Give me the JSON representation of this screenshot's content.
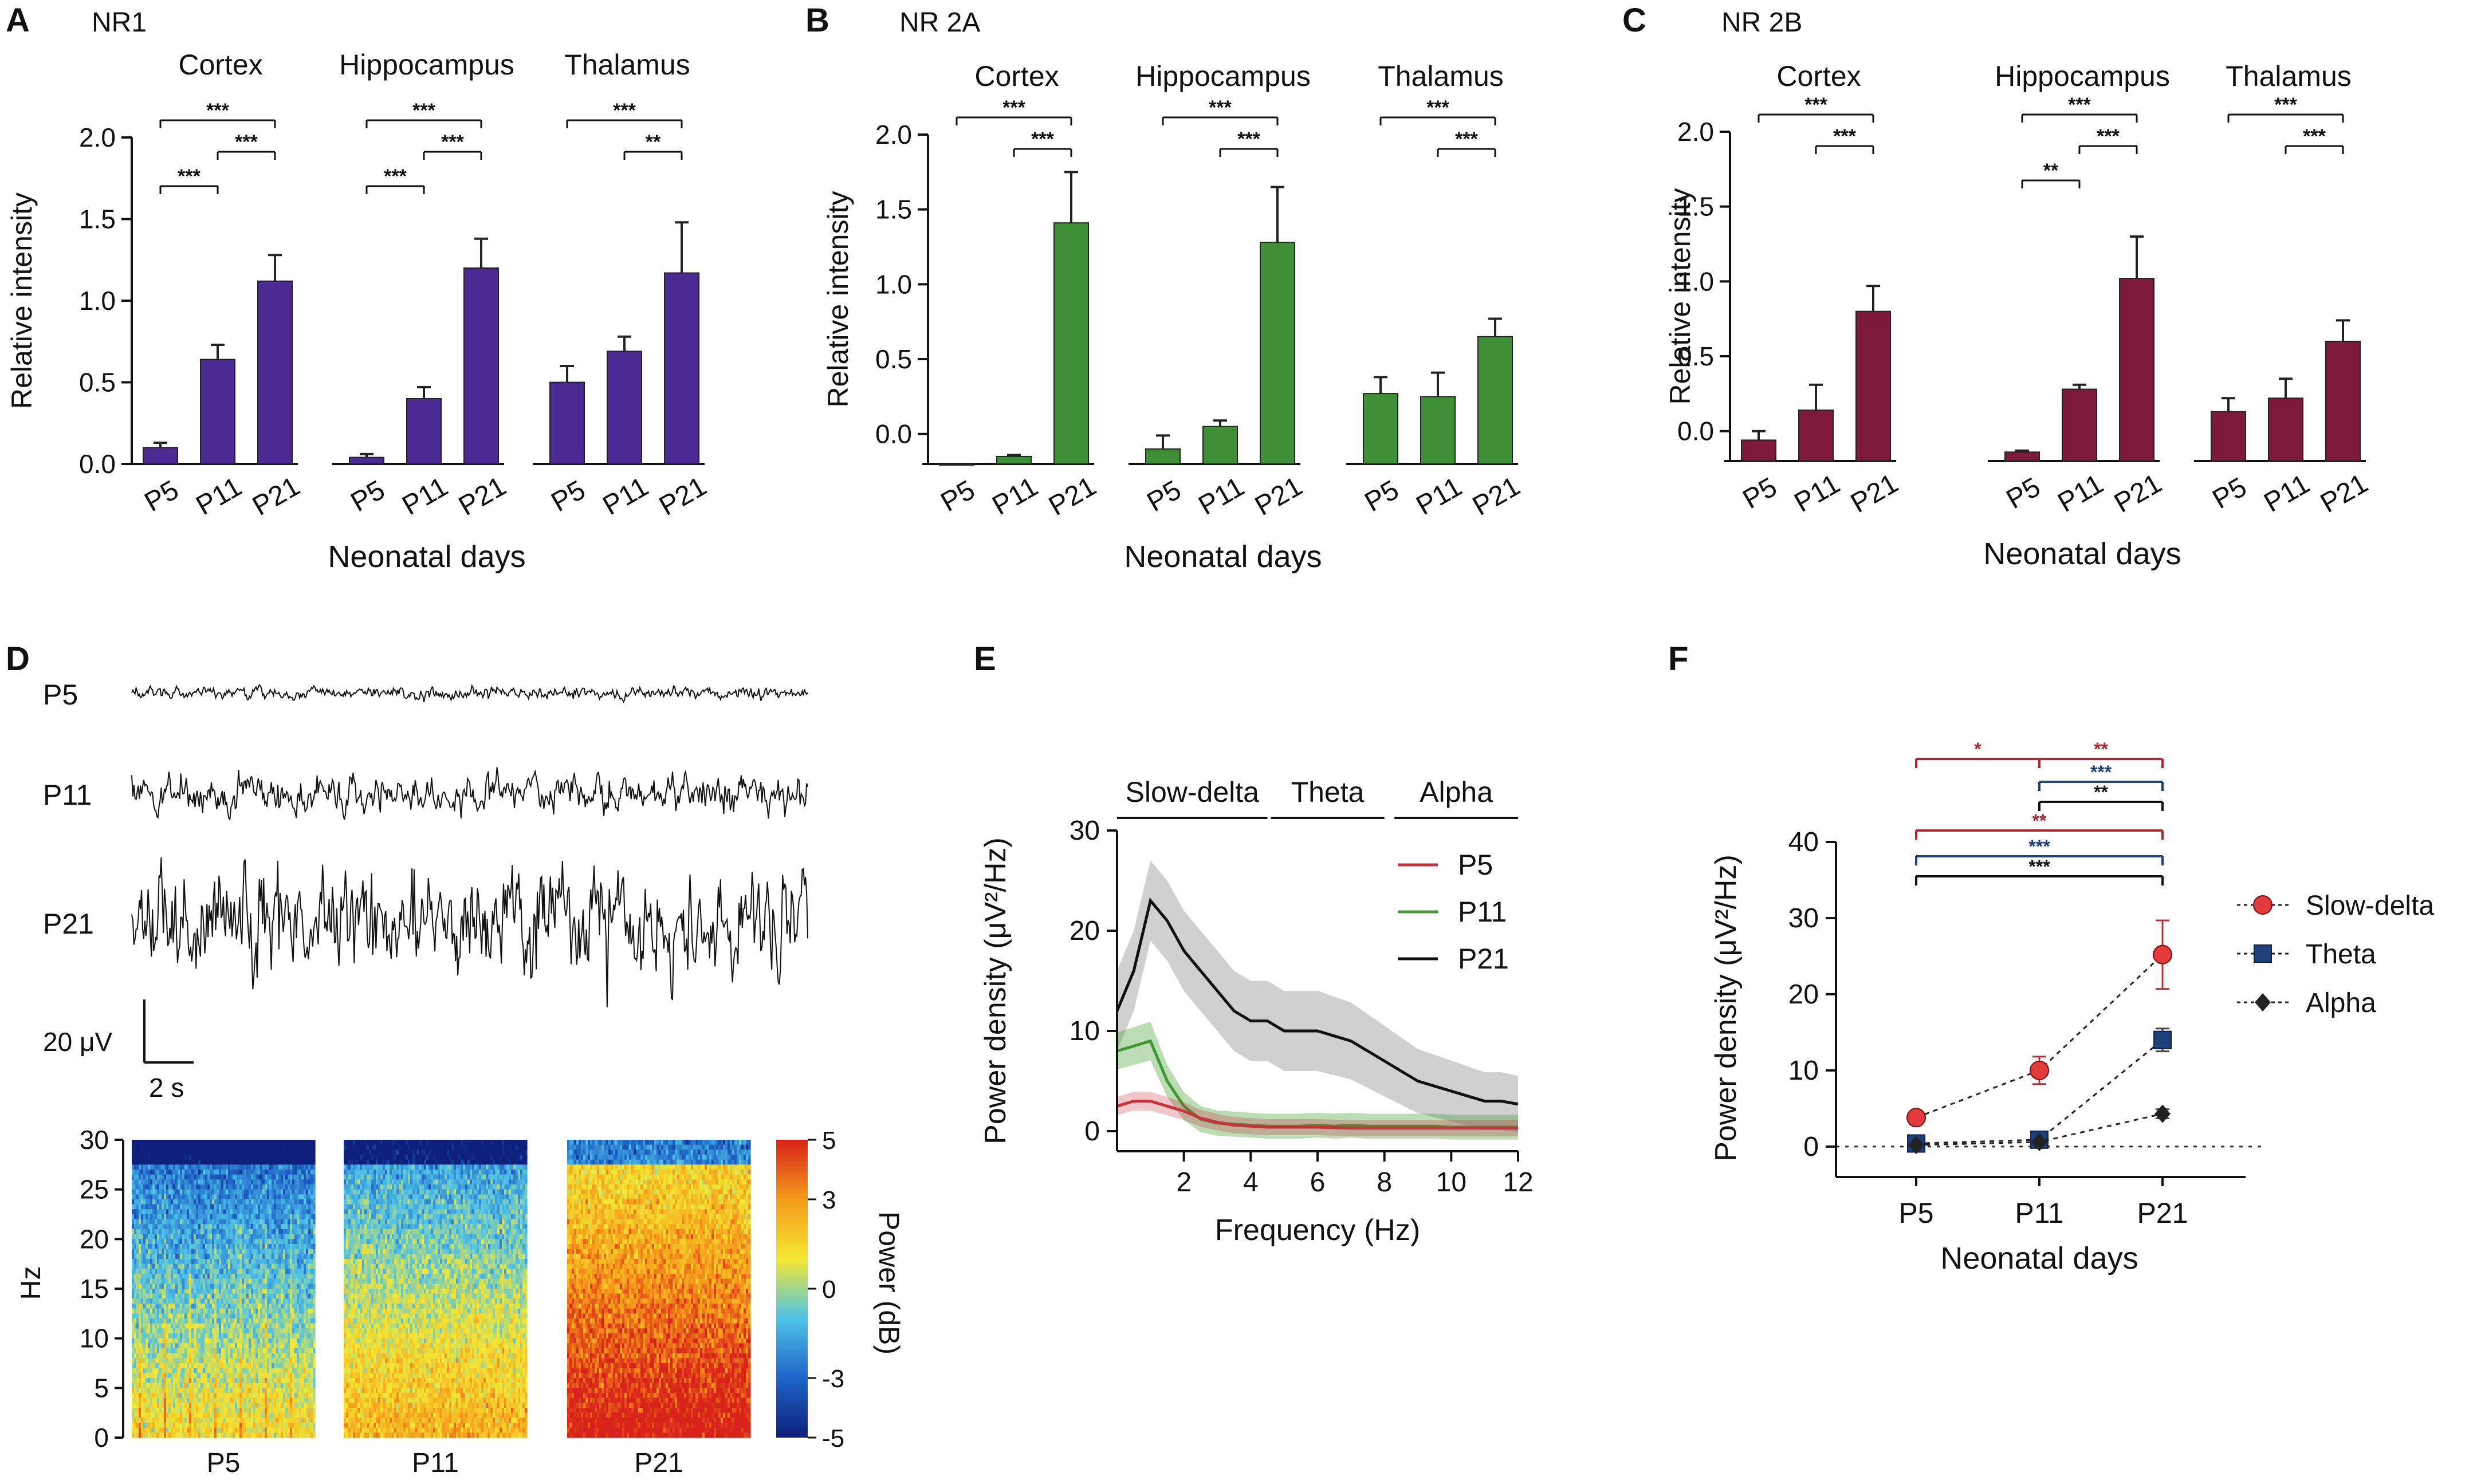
{
  "figure": {
    "panel_labels": [
      "A",
      "B",
      "C",
      "D",
      "E",
      "F"
    ]
  },
  "colors": {
    "nr1": "#4b2a93",
    "nr2a": "#3e8e35",
    "nr2b": "#7d1a3b",
    "p5": "#c8323c",
    "p11": "#3e9a2e",
    "p21": "#111111",
    "slow_delta": "#e03a3a",
    "theta": "#1f3f7a",
    "alpha": "#222222",
    "sig_red": "#b3262e",
    "sig_blue": "#1f3f7a",
    "sig_black": "#111111"
  },
  "chart_data": [
    {
      "id": "A",
      "type": "bar",
      "title": "NR1",
      "xlabel": "Neonatal days",
      "ylabel": "Relative intensity",
      "ylim": [
        0,
        2.0
      ],
      "yticks": [
        "0.0",
        "0.5",
        "1.0",
        "1.5",
        "2.0"
      ],
      "regions": [
        {
          "name": "Cortex",
          "categories": [
            "P5",
            "P11",
            "P21"
          ],
          "values": [
            0.1,
            0.64,
            1.12
          ],
          "errors": [
            0.03,
            0.09,
            0.16
          ],
          "sig": [
            {
              "from": 0,
              "to": 2,
              "label": "***"
            },
            {
              "from": 1,
              "to": 2,
              "label": "***"
            },
            {
              "from": 0,
              "to": 1,
              "label": "***"
            }
          ]
        },
        {
          "name": "Hippocampus",
          "categories": [
            "P5",
            "P11",
            "P21"
          ],
          "values": [
            0.04,
            0.4,
            1.2
          ],
          "errors": [
            0.02,
            0.07,
            0.18
          ],
          "sig": [
            {
              "from": 0,
              "to": 2,
              "label": "***"
            },
            {
              "from": 1,
              "to": 2,
              "label": "***"
            },
            {
              "from": 0,
              "to": 1,
              "label": "***"
            }
          ]
        },
        {
          "name": "Thalamus",
          "categories": [
            "P5",
            "P11",
            "P21"
          ],
          "values": [
            0.5,
            0.69,
            1.17
          ],
          "errors": [
            0.1,
            0.09,
            0.31
          ],
          "sig": [
            {
              "from": 0,
              "to": 2,
              "label": "***"
            },
            {
              "from": 1,
              "to": 2,
              "label": "**"
            }
          ]
        }
      ]
    },
    {
      "id": "B",
      "type": "bar",
      "title": "NR 2A",
      "xlabel": "Neonatal days",
      "ylabel": "Relative intensity",
      "ylim": [
        -0.2,
        2.0
      ],
      "yticks": [
        "0.0",
        "0.5",
        "1.0",
        "1.5",
        "2.0"
      ],
      "regions": [
        {
          "name": "Cortex",
          "categories": [
            "P5",
            "P11",
            "P21"
          ],
          "values": [
            -0.2,
            -0.15,
            1.41
          ],
          "errors": [
            0,
            0.01,
            0.34
          ],
          "sig": [
            {
              "from": 0,
              "to": 2,
              "label": "***"
            },
            {
              "from": 1,
              "to": 2,
              "label": "***"
            }
          ]
        },
        {
          "name": "Hippocampus",
          "categories": [
            "P5",
            "P11",
            "P21"
          ],
          "values": [
            -0.1,
            0.05,
            1.28
          ],
          "errors": [
            0.09,
            0.04,
            0.37
          ],
          "sig": [
            {
              "from": 0,
              "to": 2,
              "label": "***"
            },
            {
              "from": 1,
              "to": 2,
              "label": "***"
            }
          ]
        },
        {
          "name": "Thalamus",
          "categories": [
            "P5",
            "P11",
            "P21"
          ],
          "values": [
            0.27,
            0.25,
            0.65
          ],
          "errors": [
            0.11,
            0.16,
            0.12
          ],
          "sig": [
            {
              "from": 0,
              "to": 2,
              "label": "***"
            },
            {
              "from": 1,
              "to": 2,
              "label": "***"
            }
          ]
        }
      ]
    },
    {
      "id": "C",
      "type": "bar",
      "title": "NR 2B",
      "xlabel": "Neonatal days",
      "ylabel": "Relative intensity",
      "ylim": [
        -0.2,
        2.0
      ],
      "yticks": [
        "0.0",
        "0.5",
        "1.0",
        "1.5",
        "2.0"
      ],
      "regions": [
        {
          "name": "Cortex",
          "categories": [
            "P5",
            "P11",
            "P21"
          ],
          "values": [
            -0.06,
            0.14,
            0.8
          ],
          "errors": [
            0.06,
            0.17,
            0.17
          ],
          "sig": [
            {
              "from": 0,
              "to": 2,
              "label": "***"
            },
            {
              "from": 1,
              "to": 2,
              "label": "***"
            }
          ]
        },
        {
          "name": "Hippocampus",
          "categories": [
            "P5",
            "P11",
            "P21"
          ],
          "values": [
            -0.14,
            0.28,
            1.02
          ],
          "errors": [
            0.01,
            0.03,
            0.28
          ],
          "sig": [
            {
              "from": 0,
              "to": 2,
              "label": "***"
            },
            {
              "from": 1,
              "to": 2,
              "label": "***"
            },
            {
              "from": 0,
              "to": 1,
              "label": "**"
            }
          ]
        },
        {
          "name": "Thalamus",
          "categories": [
            "P5",
            "P11",
            "P21"
          ],
          "values": [
            0.13,
            0.22,
            0.6
          ],
          "errors": [
            0.09,
            0.13,
            0.14
          ],
          "sig": [
            {
              "from": 0,
              "to": 2,
              "label": "***"
            },
            {
              "from": 1,
              "to": 2,
              "label": "***"
            }
          ]
        }
      ]
    },
    {
      "id": "D",
      "type": "heatmap",
      "traces": [
        {
          "label": "P5",
          "amplitude": 0.45
        },
        {
          "label": "P11",
          "amplitude": 0.75
        },
        {
          "label": "P21",
          "amplitude": 1.0
        }
      ],
      "scale_bar": {
        "amplitude": "20 μV",
        "time": "2 s"
      },
      "spectrograms": [
        {
          "label": "P5",
          "level": 0.35
        },
        {
          "label": "P11",
          "level": 0.45
        },
        {
          "label": "P21",
          "level": 0.75
        }
      ],
      "ylabel": "Hz",
      "yticks": [
        "0",
        "5",
        "10",
        "15",
        "20",
        "25",
        "30"
      ],
      "colorbar": {
        "label": "Power (dB)",
        "ticks": [
          "5",
          "3",
          "0",
          "-3",
          "-5"
        ],
        "range": [
          -5,
          5
        ]
      }
    },
    {
      "id": "E",
      "type": "line",
      "xlabel": "Frequency (Hz)",
      "ylabel": "Power density (μV²/Hz)",
      "xlim": [
        0,
        12
      ],
      "ylim": [
        -2,
        30
      ],
      "xticks": [
        "2",
        "4",
        "6",
        "8",
        "10",
        "12"
      ],
      "yticks": [
        "0",
        "10",
        "20",
        "30"
      ],
      "bands": [
        {
          "name": "Slow-delta",
          "range": [
            0,
            4.5
          ]
        },
        {
          "name": "Theta",
          "range": [
            4.6,
            8
          ]
        },
        {
          "name": "Alpha",
          "range": [
            8.3,
            12
          ]
        }
      ],
      "x": [
        0,
        0.5,
        1,
        1.5,
        2,
        2.5,
        3,
        3.5,
        4,
        4.5,
        5,
        5.5,
        6,
        6.5,
        7,
        7.5,
        8,
        8.5,
        9,
        9.5,
        10,
        10.5,
        11,
        11.5,
        12
      ],
      "series": [
        {
          "name": "P5",
          "values": [
            2.5,
            3,
            3,
            2.5,
            2,
            1.3,
            0.9,
            0.6,
            0.5,
            0.4,
            0.4,
            0.4,
            0.4,
            0.35,
            0.3,
            0.3,
            0.3,
            0.3,
            0.3,
            0.3,
            0.3,
            0.3,
            0.3,
            0.3,
            0.3
          ],
          "band": 1.3
        },
        {
          "name": "P11",
          "values": [
            8,
            8.5,
            9,
            5,
            2.5,
            1.2,
            0.8,
            0.7,
            0.6,
            0.5,
            0.5,
            0.5,
            0.6,
            0.5,
            0.6,
            0.5,
            0.5,
            0.5,
            0.5,
            0.5,
            0.4,
            0.4,
            0.4,
            0.4,
            0.4
          ],
          "band": 2.0
        },
        {
          "name": "P21",
          "values": [
            12,
            16,
            23,
            21,
            18,
            16,
            14,
            12,
            11,
            11,
            10,
            10,
            10,
            9.5,
            9,
            8,
            7,
            6,
            5,
            4.5,
            4,
            3.5,
            3,
            3,
            2.7
          ],
          "band": 4.0
        }
      ]
    },
    {
      "id": "F",
      "type": "line",
      "xlabel": "Neonatal days",
      "ylabel": "Power density (μV²/Hz)",
      "categories": [
        "P5",
        "P11",
        "P21"
      ],
      "ylim": [
        -4,
        40
      ],
      "yticks": [
        "0",
        "10",
        "20",
        "30",
        "40"
      ],
      "series": [
        {
          "name": "Slow-delta",
          "values": [
            3.8,
            10.0,
            25.2
          ],
          "errors": [
            0.4,
            1.8,
            4.5
          ],
          "marker": "circle"
        },
        {
          "name": "Theta",
          "values": [
            0.4,
            0.9,
            14.0
          ],
          "errors": [
            0.2,
            0.3,
            1.5
          ],
          "marker": "square"
        },
        {
          "name": "Alpha",
          "values": [
            0.2,
            0.6,
            4.3
          ],
          "errors": [
            0.1,
            0.2,
            0.6
          ],
          "marker": "diamond"
        }
      ],
      "sig": [
        {
          "from": 0,
          "to": 1,
          "label": "*",
          "color": "red"
        },
        {
          "from": 1,
          "to": 2,
          "label": "**",
          "color": "red"
        },
        {
          "from": 1,
          "to": 2,
          "label": "***",
          "color": "blue"
        },
        {
          "from": 1,
          "to": 2,
          "label": "**",
          "color": "black"
        },
        {
          "from": 0,
          "to": 2,
          "label": "**",
          "color": "red"
        },
        {
          "from": 0,
          "to": 2,
          "label": "***",
          "color": "blue"
        },
        {
          "from": 0,
          "to": 2,
          "label": "***",
          "color": "black"
        }
      ]
    }
  ]
}
